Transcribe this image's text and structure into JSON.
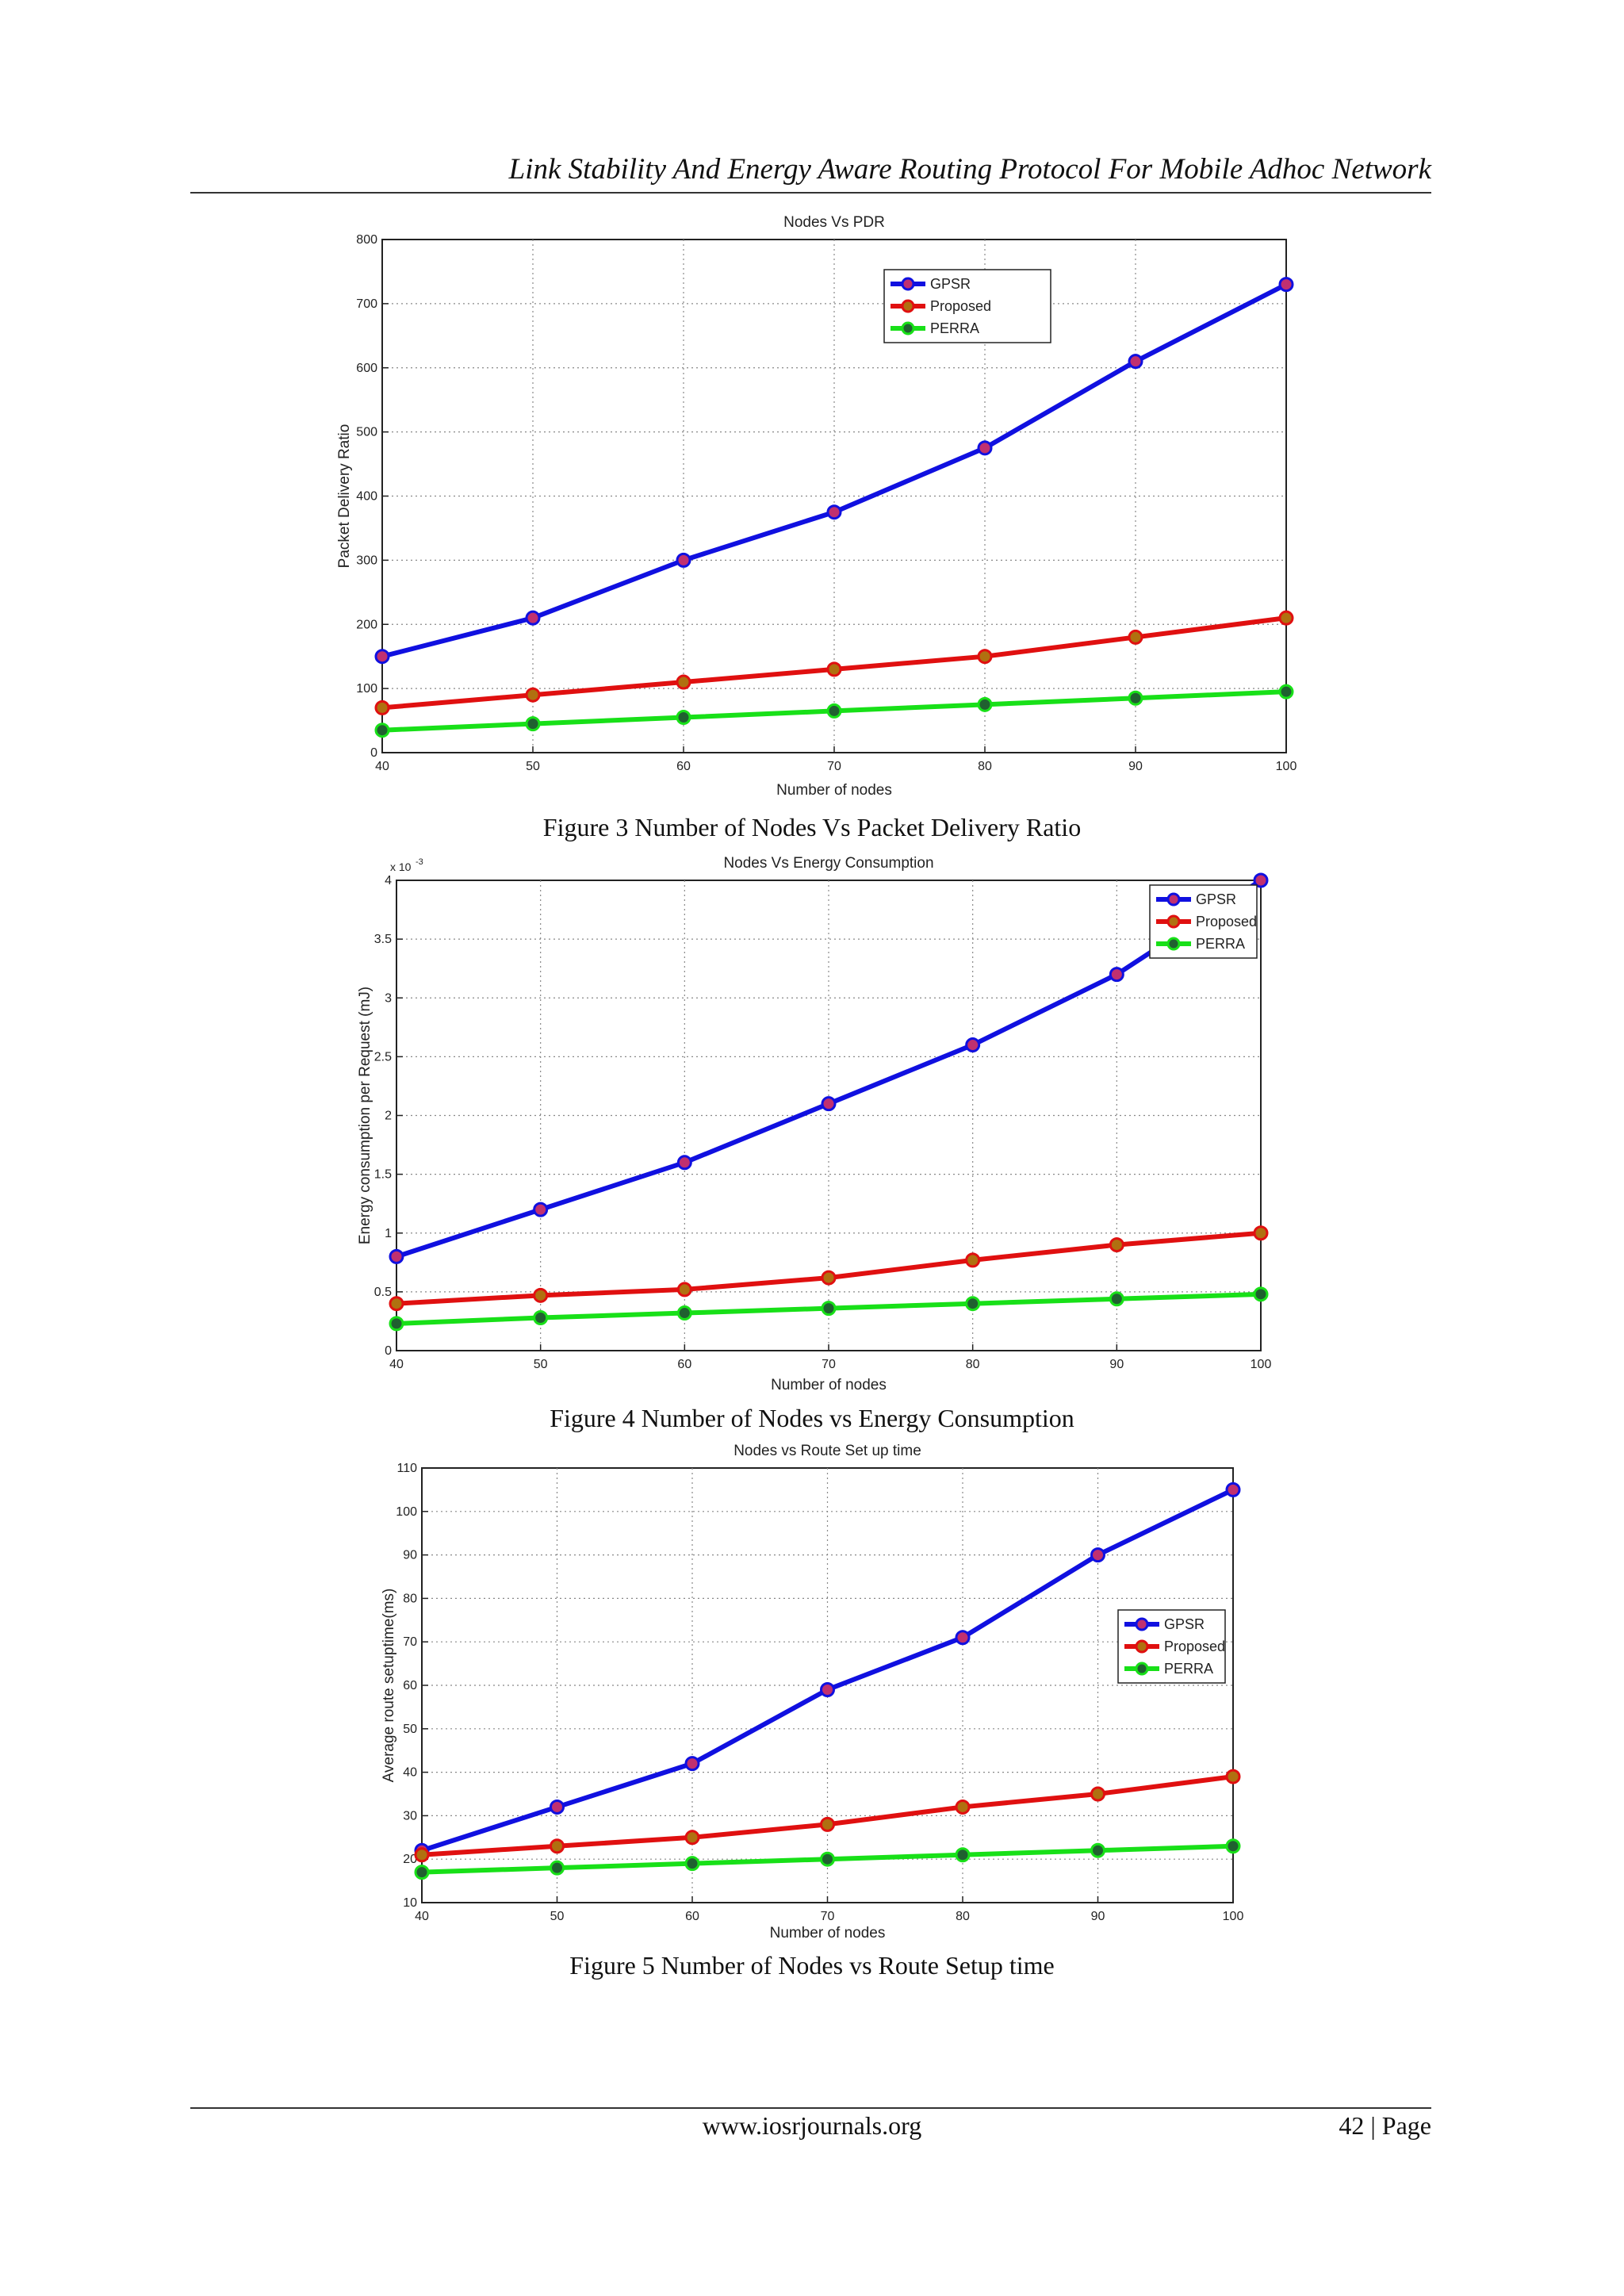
{
  "header": {
    "running_title": "Link Stability And Energy Aware Routing Protocol  For  Mobile Adhoc Network"
  },
  "footer": {
    "site": "www.iosrjournals.org",
    "page": "42 | Page"
  },
  "colors": {
    "GPSR": "#1010e0",
    "Proposed": "#e01010",
    "PERRA": "#18e018",
    "marker_fill_GPSR": "#c03070",
    "marker_fill_Proposed": "#b07010",
    "marker_fill_PERRA": "#206030"
  },
  "figures": [
    {
      "caption": "Figure 3 Number of Nodes Vs Packet Delivery Ratio"
    },
    {
      "caption": "Figure 4 Number of Nodes vs Energy Consumption"
    },
    {
      "caption": "Figure 5 Number of Nodes vs Route Setup time"
    }
  ],
  "chart_data": [
    {
      "type": "line",
      "title": "Nodes Vs PDR",
      "xlabel": "Number of nodes",
      "ylabel": "Packet Delivery Ratio",
      "x": [
        40,
        50,
        60,
        70,
        80,
        90,
        100
      ],
      "xlim": [
        40,
        100
      ],
      "ylim": [
        0,
        800
      ],
      "xticks": [
        "40",
        "50",
        "60",
        "70",
        "80",
        "90",
        "100"
      ],
      "yticks": [
        "0",
        "100",
        "200",
        "300",
        "400",
        "500",
        "600",
        "700",
        "800"
      ],
      "grid": true,
      "legend": "top-right",
      "series": [
        {
          "name": "GPSR",
          "values": [
            150,
            210,
            300,
            375,
            475,
            610,
            730
          ]
        },
        {
          "name": "Proposed",
          "values": [
            70,
            90,
            110,
            130,
            150,
            180,
            210
          ]
        },
        {
          "name": "PERRA",
          "values": [
            35,
            45,
            55,
            65,
            75,
            85,
            95
          ]
        }
      ]
    },
    {
      "type": "line",
      "title": "Nodes Vs Energy Consumption",
      "xlabel": "Number of nodes",
      "ylabel": "Energy consumption per Request (mJ)",
      "exponent_label": "x 10",
      "exponent_power": "-3",
      "x": [
        40,
        50,
        60,
        70,
        80,
        90,
        100
      ],
      "xlim": [
        40,
        100
      ],
      "ylim": [
        0,
        4
      ],
      "xticks": [
        "40",
        "50",
        "60",
        "70",
        "80",
        "90",
        "100"
      ],
      "yticks": [
        "0",
        "0.5",
        "1",
        "1.5",
        "2",
        "2.5",
        "3",
        "3.5",
        "4"
      ],
      "grid": true,
      "legend": "top-right",
      "series": [
        {
          "name": "GPSR",
          "values": [
            0.8,
            1.2,
            1.6,
            2.1,
            2.6,
            3.2,
            4.0
          ]
        },
        {
          "name": "Proposed",
          "values": [
            0.4,
            0.47,
            0.52,
            0.62,
            0.77,
            0.9,
            1.0
          ]
        },
        {
          "name": "PERRA",
          "values": [
            0.23,
            0.28,
            0.32,
            0.36,
            0.4,
            0.44,
            0.48
          ]
        }
      ]
    },
    {
      "type": "line",
      "title": "Nodes vs Route Set up time",
      "xlabel": "Number of nodes",
      "ylabel": "Average route setuptime(ms)",
      "x": [
        40,
        50,
        60,
        70,
        80,
        90,
        100
      ],
      "xlim": [
        40,
        100
      ],
      "ylim": [
        10,
        110
      ],
      "xticks": [
        "40",
        "50",
        "60",
        "70",
        "80",
        "90",
        "100"
      ],
      "yticks": [
        "10",
        "20",
        "30",
        "40",
        "50",
        "60",
        "70",
        "80",
        "90",
        "100",
        "110"
      ],
      "grid": true,
      "legend": "right",
      "series": [
        {
          "name": "GPSR",
          "values": [
            22,
            32,
            42,
            59,
            71,
            90,
            105
          ]
        },
        {
          "name": "Proposed",
          "values": [
            21,
            23,
            25,
            28,
            32,
            35,
            39
          ]
        },
        {
          "name": "PERRA",
          "values": [
            17,
            18,
            19,
            20,
            21,
            22,
            23
          ]
        }
      ]
    }
  ]
}
